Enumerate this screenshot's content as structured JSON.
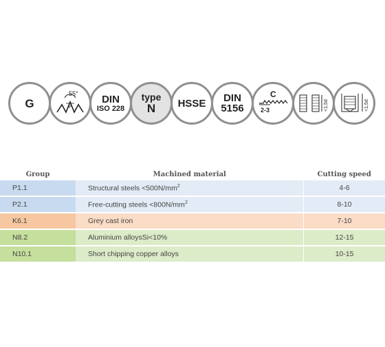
{
  "icons": [
    {
      "name": "g-icon",
      "main": "G"
    },
    {
      "name": "thread-profile-55-icon",
      "angle": "55°",
      "pitch": "P"
    },
    {
      "name": "din-iso-228-icon",
      "line1": "DIN",
      "line2": "ISO 228"
    },
    {
      "name": "type-n-icon",
      "line1": "type",
      "line2": "N"
    },
    {
      "name": "hsse-icon",
      "main": "HSSE"
    },
    {
      "name": "din-5156-icon",
      "line1": "DIN",
      "line2": "5156"
    },
    {
      "name": "chamfer-c-icon",
      "letter": "C",
      "range": "2-3"
    },
    {
      "name": "through-hole-depth-icon",
      "depth": "<1,5d"
    },
    {
      "name": "blind-hole-depth-icon",
      "depth": "<1,5d"
    }
  ],
  "table": {
    "headers": [
      "Group",
      "Machined material",
      "Cutting speed"
    ],
    "rows": [
      {
        "group": "P1.1",
        "material": "Structural steels <500N/mm",
        "sup": "2",
        "speed": "4-6",
        "group_color": "#c7daf0",
        "row_color": "#e3ebf6"
      },
      {
        "group": "P2.1",
        "material": "Free-cutting steels <800N/mm",
        "sup": "2",
        "speed": "8-10",
        "group_color": "#c7daf0",
        "row_color": "#e3ebf6"
      },
      {
        "group": "K6.1",
        "material": "Grey cast iron",
        "sup": "",
        "speed": "7-10",
        "group_color": "#f6c7a0",
        "row_color": "#fbdcc6"
      },
      {
        "group": "N8.2",
        "material": "Aluminium alloysSi<10%",
        "sup": "",
        "speed": "12-15",
        "group_color": "#c5df9c",
        "row_color": "#dcebc8"
      },
      {
        "group": "N10.1",
        "material": "Short chipping copper alloys",
        "sup": "",
        "speed": "10-15",
        "group_color": "#c5df9c",
        "row_color": "#dcebc8"
      }
    ]
  }
}
